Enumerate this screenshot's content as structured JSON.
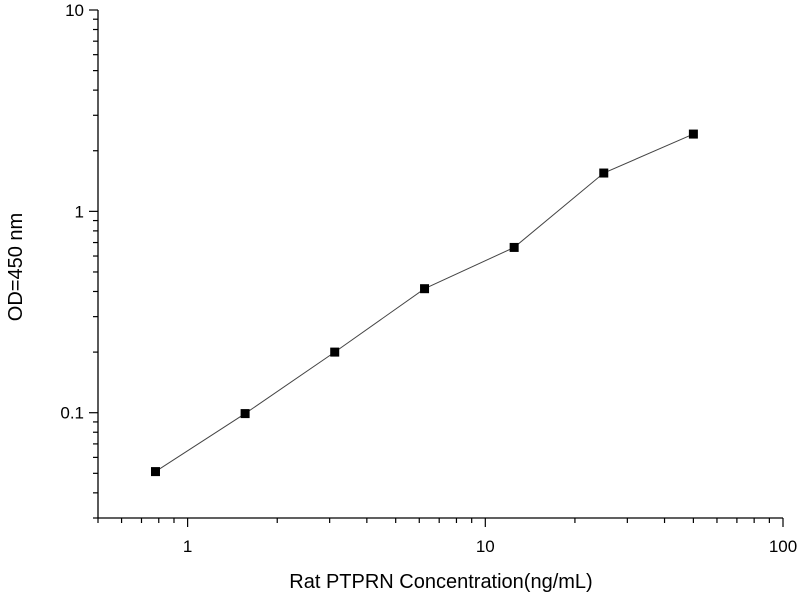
{
  "chart_data": {
    "type": "scatter",
    "title": "",
    "xlabel": "Rat PTPRN Concentration(ng/mL)",
    "ylabel": "OD=450 nm",
    "x_scale": "log",
    "y_scale": "log",
    "xlim": [
      0.5,
      100
    ],
    "ylim": [
      0.03,
      10
    ],
    "x_ticks": [
      {
        "value": 1,
        "label": "1"
      },
      {
        "value": 10,
        "label": "10"
      },
      {
        "value": 100,
        "label": "100"
      }
    ],
    "y_ticks": [
      {
        "value": 0.1,
        "label": "0.1"
      },
      {
        "value": 1,
        "label": "1"
      },
      {
        "value": 10,
        "label": "10"
      }
    ],
    "grid": false,
    "legend": "none",
    "series": [
      {
        "x": [
          0.78,
          1.56,
          3.12,
          6.25,
          12.5,
          25,
          50
        ],
        "y": [
          0.051,
          0.099,
          0.2,
          0.413,
          0.662,
          1.55,
          2.42
        ],
        "marker": "square",
        "connected": true,
        "color": "#000000",
        "line_color": "#444444"
      }
    ]
  }
}
